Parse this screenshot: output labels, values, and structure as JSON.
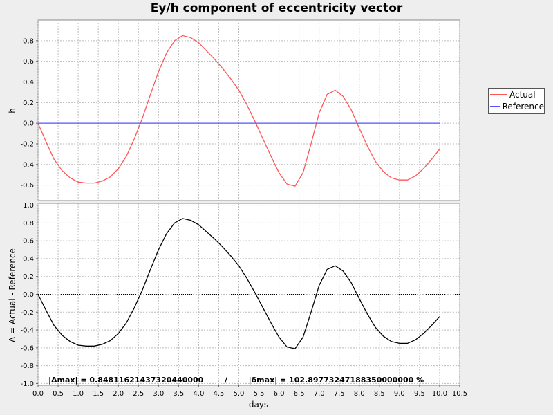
{
  "chart_data": [
    {
      "type": "line",
      "title": "Ey/h component of eccentricity vector",
      "ylabel": "h",
      "xlabel": "",
      "xlim": [
        0,
        10.5
      ],
      "ylim": [
        -0.75,
        1.0
      ],
      "yticks": [
        "0.8",
        "0.6",
        "0.4",
        "0.2",
        "0.0",
        "-0.2",
        "-0.4",
        "-0.6"
      ],
      "grid": true,
      "legend_position": "right",
      "series": [
        {
          "name": "Actual",
          "color": "#ff5555",
          "x": [
            0,
            0.2,
            0.4,
            0.6,
            0.8,
            1.0,
            1.2,
            1.4,
            1.6,
            1.8,
            2.0,
            2.2,
            2.4,
            2.6,
            2.8,
            3.0,
            3.2,
            3.4,
            3.6,
            3.8,
            4.0,
            4.2,
            4.4,
            4.6,
            4.8,
            5.0,
            5.2,
            5.4,
            5.6,
            5.8,
            6.0,
            6.2,
            6.4,
            6.6,
            6.8,
            7.0,
            7.2,
            7.4,
            7.6,
            7.8,
            8.0,
            8.2,
            8.4,
            8.6,
            8.8,
            9.0,
            9.2,
            9.4,
            9.6,
            9.8,
            10.0
          ],
          "y": [
            0.0,
            -0.18,
            -0.35,
            -0.46,
            -0.53,
            -0.57,
            -0.58,
            -0.58,
            -0.56,
            -0.52,
            -0.44,
            -0.32,
            -0.15,
            0.05,
            0.28,
            0.5,
            0.68,
            0.8,
            0.85,
            0.83,
            0.78,
            0.7,
            0.62,
            0.53,
            0.43,
            0.32,
            0.18,
            0.02,
            -0.15,
            -0.32,
            -0.48,
            -0.59,
            -0.61,
            -0.48,
            -0.2,
            0.1,
            0.28,
            0.32,
            0.26,
            0.13,
            -0.05,
            -0.22,
            -0.37,
            -0.47,
            -0.53,
            -0.55,
            -0.55,
            -0.51,
            -0.44,
            -0.35,
            -0.25
          ]
        },
        {
          "name": "Reference",
          "color": "#5555ff",
          "x": [
            0,
            10.0
          ],
          "y": [
            0.0,
            0.0
          ]
        }
      ]
    },
    {
      "type": "line",
      "title": "",
      "ylabel": "Δ = Actual - Reference",
      "xlabel": "days",
      "xlim": [
        0,
        10.5
      ],
      "ylim": [
        -1.02,
        1.02
      ],
      "yticks": [
        "1.0",
        "0.8",
        "0.6",
        "0.4",
        "0.2",
        "0.0",
        "-0.2",
        "-0.4",
        "-0.6",
        "-0.8",
        "-1.0"
      ],
      "xticks": [
        "0.0",
        "0.5",
        "1.0",
        "1.5",
        "2.0",
        "2.5",
        "3.0",
        "3.5",
        "4.0",
        "4.5",
        "5.0",
        "5.5",
        "6.0",
        "6.5",
        "7.0",
        "7.5",
        "8.0",
        "8.5",
        "9.0",
        "9.5",
        "10.0",
        "10.5"
      ],
      "grid": true,
      "series": [
        {
          "color": "#000000",
          "x": [
            0,
            0.2,
            0.4,
            0.6,
            0.8,
            1.0,
            1.2,
            1.4,
            1.6,
            1.8,
            2.0,
            2.2,
            2.4,
            2.6,
            2.8,
            3.0,
            3.2,
            3.4,
            3.6,
            3.8,
            4.0,
            4.2,
            4.4,
            4.6,
            4.8,
            5.0,
            5.2,
            5.4,
            5.6,
            5.8,
            6.0,
            6.2,
            6.4,
            6.6,
            6.8,
            7.0,
            7.2,
            7.4,
            7.6,
            7.8,
            8.0,
            8.2,
            8.4,
            8.6,
            8.8,
            9.0,
            9.2,
            9.4,
            9.6,
            9.8,
            10.0
          ],
          "y": [
            0.0,
            -0.18,
            -0.35,
            -0.46,
            -0.53,
            -0.57,
            -0.58,
            -0.58,
            -0.56,
            -0.52,
            -0.44,
            -0.32,
            -0.15,
            0.05,
            0.28,
            0.5,
            0.68,
            0.8,
            0.85,
            0.83,
            0.78,
            0.7,
            0.62,
            0.53,
            0.43,
            0.32,
            0.18,
            0.02,
            -0.15,
            -0.32,
            -0.48,
            -0.59,
            -0.61,
            -0.48,
            -0.2,
            0.1,
            0.28,
            0.32,
            0.26,
            0.13,
            -0.05,
            -0.22,
            -0.37,
            -0.47,
            -0.53,
            -0.55,
            -0.55,
            -0.51,
            -0.44,
            -0.35,
            -0.25
          ]
        }
      ],
      "annotation": "|Δmax| = 0.84811621437320440000        /        |δmax| = 102.89773247188350000000 %"
    }
  ]
}
